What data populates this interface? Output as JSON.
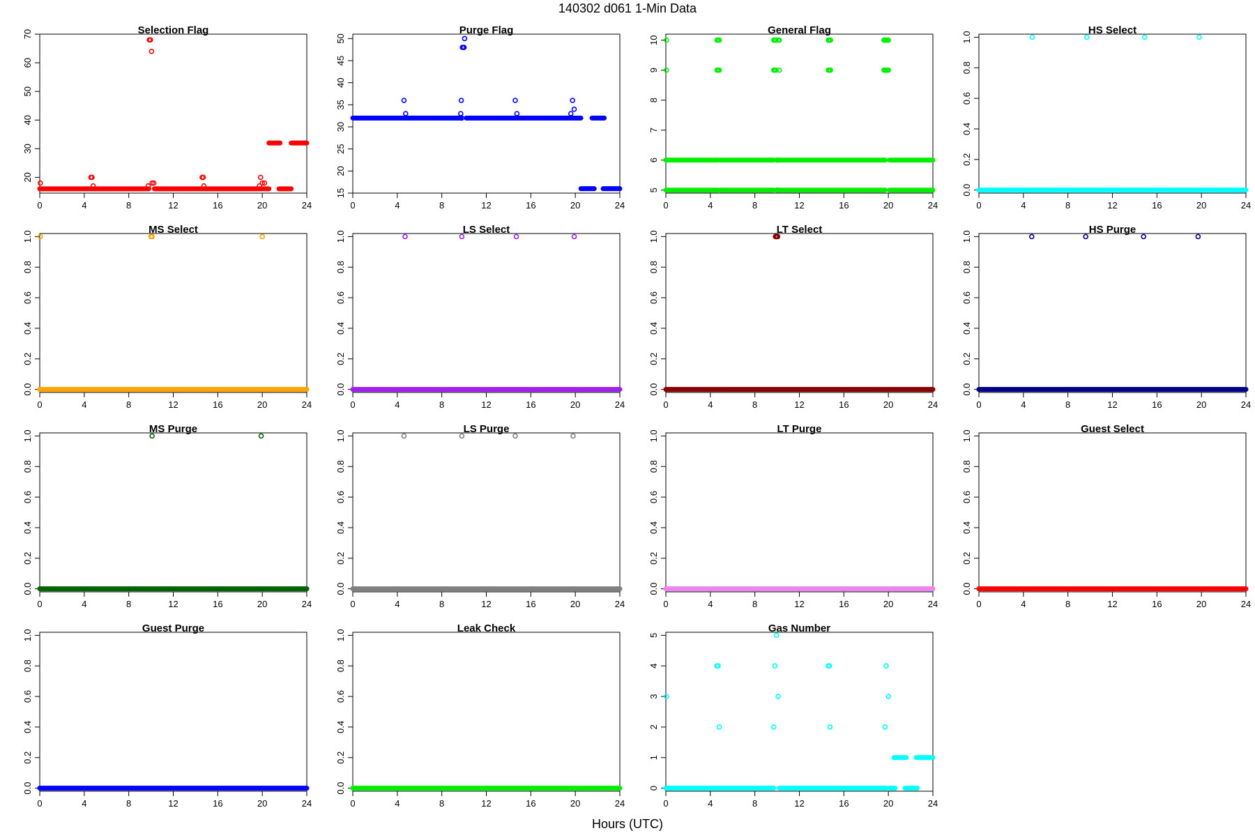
{
  "figure": {
    "title": "140302   d061   1-Min Data",
    "xlabel": "Hours (UTC)"
  },
  "chart_data": [
    {
      "type": "scatter",
      "title": "Selection Flag",
      "color": "#ff0000",
      "xlim": [
        0,
        24
      ],
      "ylim": [
        14.5,
        70
      ],
      "xticks": [
        0,
        4,
        8,
        12,
        16,
        20,
        24
      ],
      "yticks": [
        20,
        30,
        40,
        50,
        60,
        70
      ],
      "baselines": [
        {
          "y": 16,
          "segments": [
            [
              0,
              9.8
            ],
            [
              10.3,
              19.9
            ],
            [
              20.1,
              20.6
            ],
            [
              21.5,
              22.6
            ]
          ]
        },
        {
          "y": 32,
          "segments": [
            [
              20.6,
              21.6
            ],
            [
              22.6,
              24
            ]
          ]
        }
      ],
      "points": [
        [
          0.05,
          18
        ],
        [
          4.6,
          20
        ],
        [
          4.7,
          20
        ],
        [
          4.8,
          17
        ],
        [
          9.75,
          17
        ],
        [
          9.85,
          68
        ],
        [
          9.95,
          68
        ],
        [
          10.05,
          64
        ],
        [
          10.1,
          18
        ],
        [
          10.25,
          18
        ],
        [
          14.6,
          20
        ],
        [
          14.7,
          20
        ],
        [
          14.75,
          17
        ],
        [
          19.75,
          17
        ],
        [
          19.85,
          20
        ],
        [
          20.0,
          18
        ],
        [
          20.2,
          18
        ]
      ]
    },
    {
      "type": "scatter",
      "title": "Purge Flag",
      "color": "#0000ff",
      "xlim": [
        0,
        24
      ],
      "ylim": [
        15,
        51
      ],
      "xticks": [
        0,
        4,
        8,
        12,
        16,
        20,
        24
      ],
      "yticks": [
        15,
        20,
        25,
        30,
        35,
        40,
        45,
        50
      ],
      "baselines": [
        {
          "y": 32,
          "segments": [
            [
              0,
              9.7
            ],
            [
              10.2,
              20.5
            ],
            [
              21.5,
              22.6
            ]
          ]
        },
        {
          "y": 16,
          "segments": [
            [
              20.5,
              21.7
            ],
            [
              22.5,
              24
            ]
          ]
        }
      ],
      "points": [
        [
          4.6,
          36
        ],
        [
          4.75,
          33
        ],
        [
          9.7,
          33
        ],
        [
          9.75,
          36
        ],
        [
          9.8,
          32
        ],
        [
          9.85,
          48
        ],
        [
          9.95,
          48
        ],
        [
          10.0,
          48
        ],
        [
          10.05,
          50
        ],
        [
          14.6,
          36
        ],
        [
          14.75,
          33
        ],
        [
          19.6,
          33
        ],
        [
          19.75,
          36
        ],
        [
          19.9,
          34
        ]
      ]
    },
    {
      "type": "scatter",
      "title": "General Flag",
      "color": "#00ee00",
      "xlim": [
        0,
        24
      ],
      "ylim": [
        4.9,
        10.2
      ],
      "xticks": [
        0,
        4,
        8,
        12,
        16,
        20,
        24
      ],
      "yticks": [
        5,
        6,
        7,
        8,
        9,
        10
      ],
      "baselines": [
        {
          "y": 6,
          "segments": [
            [
              0,
              4.7
            ],
            [
              4.9,
              9.7
            ],
            [
              10.1,
              19.7
            ],
            [
              20.1,
              24
            ]
          ]
        },
        {
          "y": 5,
          "segments": [
            [
              0,
              4.7
            ],
            [
              4.9,
              9.7
            ],
            [
              10.1,
              19.7
            ],
            [
              20.1,
              24
            ]
          ]
        }
      ],
      "points": [
        [
          0.05,
          10
        ],
        [
          0.05,
          9
        ],
        [
          4.6,
          10
        ],
        [
          4.7,
          10
        ],
        [
          4.8,
          10
        ],
        [
          4.6,
          9
        ],
        [
          4.7,
          9
        ],
        [
          4.8,
          9
        ],
        [
          9.7,
          10
        ],
        [
          9.8,
          10
        ],
        [
          9.9,
          10
        ],
        [
          10.1,
          10
        ],
        [
          10.2,
          10
        ],
        [
          9.7,
          9
        ],
        [
          9.8,
          9
        ],
        [
          9.9,
          9
        ],
        [
          10.2,
          9
        ],
        [
          10.0,
          6
        ],
        [
          10.0,
          5
        ],
        [
          14.6,
          10
        ],
        [
          14.7,
          10
        ],
        [
          14.8,
          10
        ],
        [
          14.6,
          9
        ],
        [
          14.7,
          9
        ],
        [
          14.8,
          9
        ],
        [
          19.6,
          10
        ],
        [
          19.7,
          10
        ],
        [
          19.8,
          10
        ],
        [
          19.9,
          10
        ],
        [
          20.0,
          10
        ],
        [
          19.6,
          9
        ],
        [
          19.7,
          9
        ],
        [
          19.8,
          9
        ],
        [
          19.9,
          9
        ],
        [
          20.0,
          9
        ]
      ]
    },
    {
      "type": "scatter",
      "title": "HS Select",
      "color": "#00ffff",
      "xlim": [
        0,
        24
      ],
      "ylim": [
        -0.02,
        1.02
      ],
      "xticks": [
        0,
        4,
        8,
        12,
        16,
        20,
        24
      ],
      "yticks": [
        0.0,
        0.2,
        0.4,
        0.6,
        0.8,
        1.0
      ],
      "baselines": [
        {
          "y": 0,
          "segments": [
            [
              0,
              24
            ]
          ]
        }
      ],
      "points": [
        [
          4.8,
          1
        ],
        [
          9.7,
          1
        ],
        [
          14.9,
          1
        ],
        [
          19.8,
          1
        ]
      ]
    },
    {
      "type": "scatter",
      "title": "MS Select",
      "color": "#ffa500",
      "xlim": [
        0,
        24
      ],
      "ylim": [
        -0.02,
        1.02
      ],
      "xticks": [
        0,
        4,
        8,
        12,
        16,
        20,
        24
      ],
      "yticks": [
        0.0,
        0.2,
        0.4,
        0.6,
        0.8,
        1.0
      ],
      "baselines": [
        {
          "y": 0,
          "segments": [
            [
              0,
              24
            ]
          ]
        }
      ],
      "points": [
        [
          0.05,
          1
        ],
        [
          10.0,
          1
        ],
        [
          10.1,
          1
        ],
        [
          20.0,
          1
        ]
      ]
    },
    {
      "type": "scatter",
      "title": "LS Select",
      "color": "#a020f0",
      "xlim": [
        0,
        24
      ],
      "ylim": [
        -0.02,
        1.02
      ],
      "xticks": [
        0,
        4,
        8,
        12,
        16,
        20,
        24
      ],
      "yticks": [
        0.0,
        0.2,
        0.4,
        0.6,
        0.8,
        1.0
      ],
      "baselines": [
        {
          "y": 0,
          "segments": [
            [
              0,
              24
            ]
          ]
        }
      ],
      "points": [
        [
          4.7,
          1
        ],
        [
          9.8,
          1
        ],
        [
          14.7,
          1
        ],
        [
          19.9,
          1
        ]
      ]
    },
    {
      "type": "scatter",
      "title": "LT Select",
      "color": "#8b0000",
      "xlim": [
        0,
        24
      ],
      "ylim": [
        -0.02,
        1.02
      ],
      "xticks": [
        0,
        4,
        8,
        12,
        16,
        20,
        24
      ],
      "yticks": [
        0.0,
        0.2,
        0.4,
        0.6,
        0.8,
        1.0
      ],
      "baselines": [
        {
          "y": 0,
          "segments": [
            [
              0,
              24
            ]
          ]
        }
      ],
      "points": [
        [
          9.85,
          1
        ],
        [
          9.9,
          1
        ],
        [
          9.95,
          1
        ],
        [
          10.0,
          1
        ],
        [
          10.05,
          1
        ]
      ]
    },
    {
      "type": "scatter",
      "title": "HS Purge",
      "color": "#00008b",
      "xlim": [
        0,
        24
      ],
      "ylim": [
        -0.02,
        1.02
      ],
      "xticks": [
        0,
        4,
        8,
        12,
        16,
        20,
        24
      ],
      "yticks": [
        0.0,
        0.2,
        0.4,
        0.6,
        0.8,
        1.0
      ],
      "baselines": [
        {
          "y": 0,
          "segments": [
            [
              0,
              24
            ]
          ]
        }
      ],
      "points": [
        [
          4.75,
          1
        ],
        [
          9.6,
          1
        ],
        [
          14.8,
          1
        ],
        [
          19.7,
          1
        ]
      ]
    },
    {
      "type": "scatter",
      "title": "MS Purge",
      "color": "#006400",
      "xlim": [
        0,
        24
      ],
      "ylim": [
        -0.02,
        1.02
      ],
      "xticks": [
        0,
        4,
        8,
        12,
        16,
        20,
        24
      ],
      "yticks": [
        0.0,
        0.2,
        0.4,
        0.6,
        0.8,
        1.0
      ],
      "baselines": [
        {
          "y": 0,
          "segments": [
            [
              0,
              24
            ]
          ]
        }
      ],
      "points": [
        [
          10.1,
          1
        ],
        [
          19.9,
          1
        ]
      ]
    },
    {
      "type": "scatter",
      "title": "LS Purge",
      "color": "#808080",
      "xlim": [
        0,
        24
      ],
      "ylim": [
        -0.02,
        1.02
      ],
      "xticks": [
        0,
        4,
        8,
        12,
        16,
        20,
        24
      ],
      "yticks": [
        0.0,
        0.2,
        0.4,
        0.6,
        0.8,
        1.0
      ],
      "baselines": [
        {
          "y": 0,
          "segments": [
            [
              0,
              24
            ]
          ]
        }
      ],
      "points": [
        [
          4.6,
          1
        ],
        [
          9.8,
          1
        ],
        [
          14.6,
          1
        ],
        [
          19.8,
          1
        ]
      ]
    },
    {
      "type": "scatter",
      "title": "LT Purge",
      "color": "#ee82ee",
      "xlim": [
        0,
        24
      ],
      "ylim": [
        -0.02,
        1.02
      ],
      "xticks": [
        0,
        4,
        8,
        12,
        16,
        20,
        24
      ],
      "yticks": [
        0.0,
        0.2,
        0.4,
        0.6,
        0.8,
        1.0
      ],
      "baselines": [
        {
          "y": 0,
          "segments": [
            [
              0,
              24
            ]
          ]
        }
      ],
      "points": []
    },
    {
      "type": "scatter",
      "title": "Guest Select",
      "color": "#ff0000",
      "xlim": [
        0,
        24
      ],
      "ylim": [
        -0.02,
        1.02
      ],
      "xticks": [
        0,
        4,
        8,
        12,
        16,
        20,
        24
      ],
      "yticks": [
        0.0,
        0.2,
        0.4,
        0.6,
        0.8,
        1.0
      ],
      "baselines": [
        {
          "y": 0,
          "segments": [
            [
              0,
              24
            ]
          ]
        }
      ],
      "points": []
    },
    {
      "type": "scatter",
      "title": "Guest Purge",
      "color": "#0000ff",
      "xlim": [
        0,
        24
      ],
      "ylim": [
        -0.02,
        1.02
      ],
      "xticks": [
        0,
        4,
        8,
        12,
        16,
        20,
        24
      ],
      "yticks": [
        0.0,
        0.2,
        0.4,
        0.6,
        0.8,
        1.0
      ],
      "baselines": [
        {
          "y": 0,
          "segments": [
            [
              0,
              24
            ]
          ]
        }
      ],
      "points": []
    },
    {
      "type": "scatter",
      "title": "Leak Check",
      "color": "#00ee00",
      "xlim": [
        0,
        24
      ],
      "ylim": [
        -0.02,
        1.02
      ],
      "xticks": [
        0,
        4,
        8,
        12,
        16,
        20,
        24
      ],
      "yticks": [
        0.0,
        0.2,
        0.4,
        0.6,
        0.8,
        1.0
      ],
      "baselines": [
        {
          "y": 0,
          "segments": [
            [
              0,
              24
            ]
          ]
        }
      ],
      "points": []
    },
    {
      "type": "scatter",
      "title": "Gas Number",
      "color": "#00ffff",
      "xlim": [
        0,
        24
      ],
      "ylim": [
        -0.1,
        5.1
      ],
      "xticks": [
        0,
        4,
        8,
        12,
        16,
        20,
        24
      ],
      "yticks": [
        0,
        1,
        2,
        3,
        4,
        5
      ],
      "baselines": [
        {
          "y": 0,
          "segments": [
            [
              0,
              9.7
            ],
            [
              10.2,
              19.8
            ],
            [
              20.1,
              20.6
            ],
            [
              21.5,
              22.6
            ]
          ]
        },
        {
          "y": 1,
          "segments": [
            [
              20.5,
              21.6
            ],
            [
              22.5,
              24
            ]
          ]
        }
      ],
      "points": [
        [
          0.05,
          3
        ],
        [
          4.6,
          4
        ],
        [
          4.7,
          4
        ],
        [
          4.8,
          2
        ],
        [
          9.7,
          2
        ],
        [
          9.8,
          4
        ],
        [
          9.95,
          5
        ],
        [
          10.1,
          3
        ],
        [
          14.6,
          4
        ],
        [
          14.7,
          4
        ],
        [
          14.75,
          2
        ],
        [
          19.7,
          2
        ],
        [
          19.8,
          4
        ],
        [
          20.0,
          3
        ]
      ]
    }
  ]
}
